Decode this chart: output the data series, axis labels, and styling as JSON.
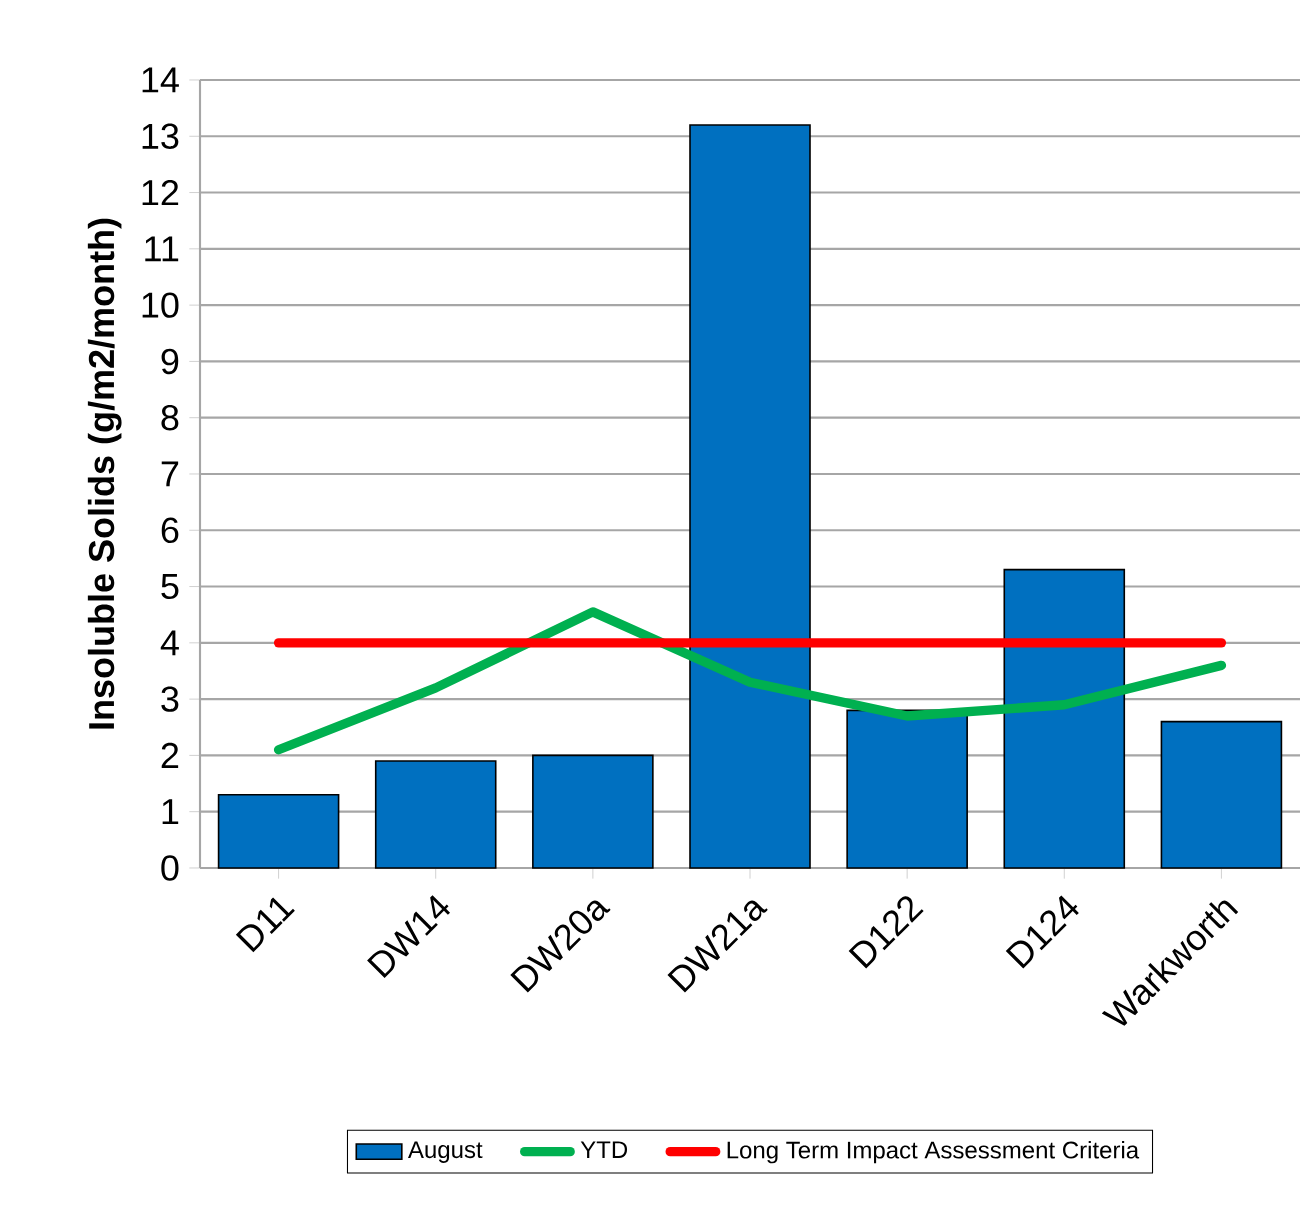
{
  "chart_data": {
    "type": "bar",
    "ylabel": "Insoluble Solids (g/m2/month)",
    "categories": [
      "D11",
      "DW14",
      "DW20a",
      "DW21a",
      "D122",
      "D124",
      "Warkworth"
    ],
    "series": [
      {
        "name": "August",
        "color": "#0070c0",
        "values": [
          1.3,
          1.9,
          2.0,
          13.2,
          2.8,
          5.3,
          2.6
        ]
      },
      {
        "name": "YTD",
        "type": "line",
        "color": "#00b050",
        "values": [
          2.1,
          3.2,
          4.55,
          3.3,
          2.7,
          2.9,
          3.6
        ]
      },
      {
        "name": "Long Term Impact Assessment Criteria",
        "type": "line",
        "color": "#ff0000",
        "values": [
          4,
          4,
          4,
          4,
          4,
          4,
          4
        ]
      }
    ],
    "ylim": [
      0,
      14
    ],
    "yticks": [
      0,
      1,
      2,
      3,
      4,
      5,
      6,
      7,
      8,
      9,
      10,
      11,
      12,
      13,
      14
    ],
    "grid": "y",
    "legend": "bottom",
    "marker": "none",
    "line_style": "solid"
  }
}
